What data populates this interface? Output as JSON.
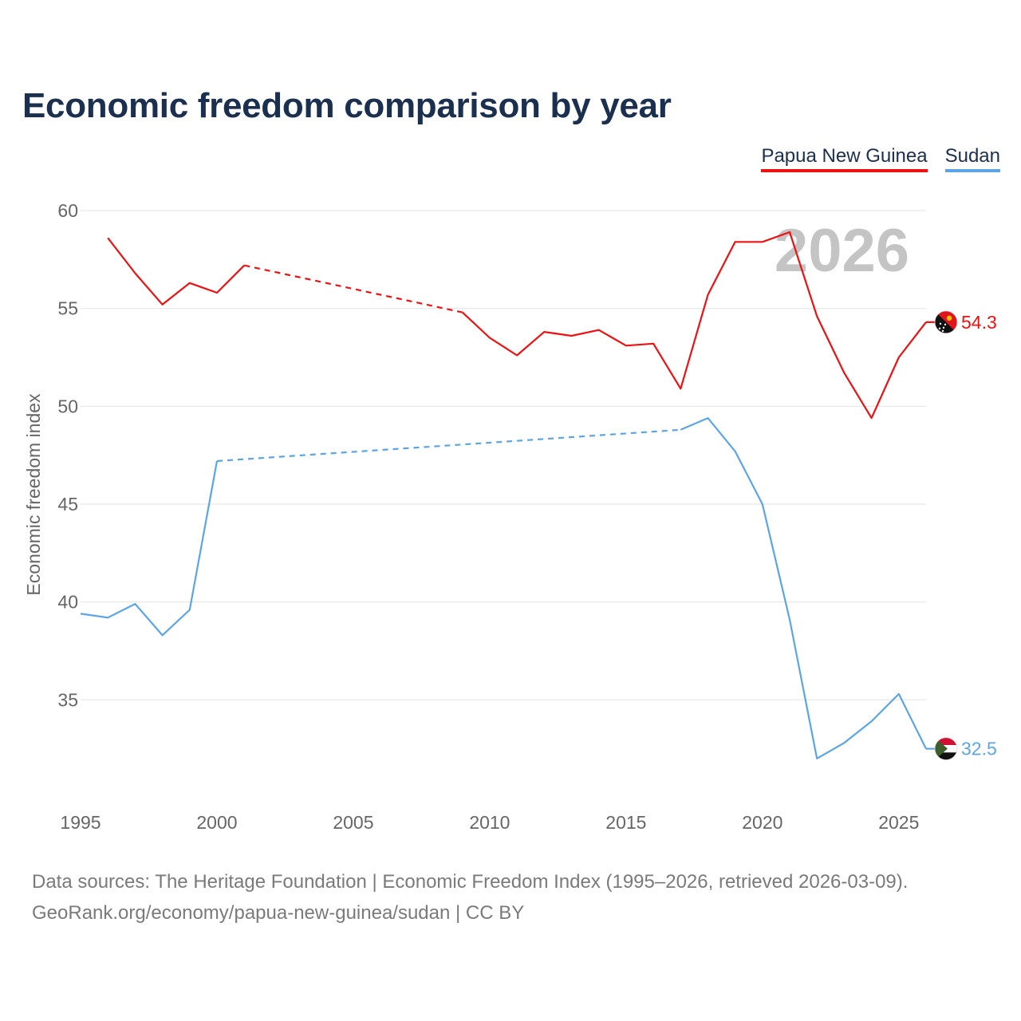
{
  "title": "Economic freedom comparison by year",
  "watermark_year": "2026",
  "footer": {
    "line1": "Data sources: The Heritage Foundation | Economic Freedom Index (1995–2026, retrieved 2026-03-09).",
    "line2": "GeoRank.org/economy/papua-new-guinea/sudan | CC BY"
  },
  "chart_data": {
    "type": "line",
    "title": "Economic freedom comparison by year",
    "xlabel": "",
    "ylabel": "Economic freedom index",
    "xlim": [
      1995,
      2026
    ],
    "ylim": [
      30,
      60
    ],
    "x_ticks": [
      1995,
      2000,
      2005,
      2010,
      2015,
      2020,
      2025
    ],
    "y_ticks": [
      35,
      40,
      45,
      50,
      55,
      60
    ],
    "grid": true,
    "legend_position": "top-right",
    "series": [
      {
        "name": "Papua New Guinea",
        "color": "#ee1111",
        "end_label": "54.3",
        "flag_icon": "papua-new-guinea-flag-icon",
        "x": [
          1996,
          1997,
          1998,
          1999,
          2000,
          2001,
          2009,
          2010,
          2011,
          2012,
          2013,
          2014,
          2015,
          2016,
          2017,
          2018,
          2019,
          2020,
          2021,
          2022,
          2023,
          2024,
          2025,
          2026
        ],
        "y": [
          58.6,
          56.8,
          55.2,
          56.3,
          55.8,
          57.2,
          54.8,
          53.5,
          52.6,
          53.8,
          53.6,
          53.9,
          53.1,
          53.2,
          50.9,
          55.7,
          58.4,
          58.4,
          58.9,
          54.6,
          51.7,
          49.4,
          52.5,
          54.3
        ],
        "gap_after_x": 2001
      },
      {
        "name": "Sudan",
        "color": "#5ba5e6",
        "end_label": "32.5",
        "flag_icon": "sudan-flag-icon",
        "x": [
          1995,
          1996,
          1997,
          1998,
          1999,
          2000,
          2017,
          2018,
          2019,
          2020,
          2021,
          2022,
          2023,
          2024,
          2025,
          2026
        ],
        "y": [
          39.4,
          39.2,
          39.9,
          38.3,
          39.6,
          47.2,
          48.8,
          49.4,
          47.7,
          45.0,
          39.1,
          32.0,
          32.8,
          33.9,
          35.3,
          32.5
        ],
        "gap_after_x": 2000
      }
    ]
  }
}
